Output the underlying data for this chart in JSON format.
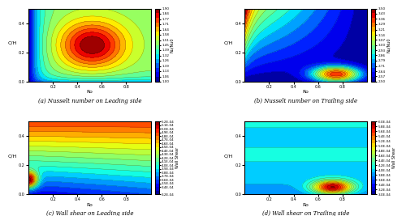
{
  "nu_lead": {
    "title": "(a) Nusselt number on Leading side",
    "xlabel": "Ro",
    "ylabel": "C/H",
    "cbar_label": "Nu/Nu0",
    "vmin": 1.0,
    "vmax": 1.9,
    "levels_n": 16,
    "colormap": "jet",
    "ticks": [
      1.0,
      1.06,
      1.13,
      1.19,
      1.26,
      1.32,
      1.39,
      1.45,
      1.51,
      1.58,
      1.64,
      1.71,
      1.77,
      1.84,
      1.9
    ]
  },
  "nu_trail": {
    "title": "(b) Nusselt number on Trailing side",
    "xlabel": "Ro",
    "ylabel": "C/H",
    "cbar_label": "Nu/Nu0",
    "vmin": 2.5,
    "vmax": 3.5,
    "levels_n": 16,
    "colormap": "jet",
    "ticks": [
      2.5,
      2.57,
      2.64,
      2.71,
      2.79,
      2.86,
      2.93,
      3.0,
      3.07,
      3.14,
      3.21,
      3.29,
      3.36,
      3.43,
      3.5
    ]
  },
  "ws_lead": {
    "title": "(c) Wall shear on Leading side",
    "xlabel": "Ro",
    "ylabel": "C/H",
    "cbar_label": "Wall Shear",
    "vmin": 0.00032,
    "vmax": 0.00052,
    "levels_n": 20,
    "colormap": "jet",
    "ticks_str": [
      "3.2E-04",
      "3.4E-04",
      "3.5E-04",
      "3.6E-04",
      "3.7E-04",
      "3.8E-04",
      "3.9E-04",
      "4.0E-04",
      "4.1E-04",
      "4.2E-04",
      "4.3E-04",
      "4.4E-04",
      "4.5E-04",
      "4.6E-04",
      "4.7E-04",
      "4.8E-04",
      "4.9E-04",
      "5.0E-04",
      "5.1E-04",
      "5.2E-04"
    ],
    "ticks_vals": [
      0.00032,
      0.00034,
      0.00035,
      0.00036,
      0.00037,
      0.00038,
      0.00039,
      0.0004,
      0.00041,
      0.00042,
      0.00043,
      0.00044,
      0.00045,
      0.00046,
      0.00047,
      0.00048,
      0.00049,
      0.0005,
      0.00051,
      0.00052
    ]
  },
  "ws_trail": {
    "title": "(d) Wall shear on Trailing side",
    "xlabel": "Ro",
    "ylabel": "C/H",
    "cbar_label": "Wall Shear",
    "vmin": 0.0003,
    "vmax": 0.0006,
    "levels_n": 20,
    "colormap": "jet",
    "ticks_str": [
      "3.0E-04",
      "3.2E-04",
      "3.4E-04",
      "3.6E-04",
      "3.8E-04",
      "4.0E-04",
      "4.2E-04",
      "4.4E-04",
      "4.6E-04",
      "4.8E-04",
      "5.0E-04",
      "5.2E-04",
      "5.4E-04",
      "5.6E-04",
      "5.8E-04",
      "6.0E-04"
    ],
    "ticks_vals": [
      0.0003,
      0.00032,
      0.00034,
      0.00036,
      0.00038,
      0.0004,
      0.00042,
      0.00044,
      0.00046,
      0.00048,
      0.0005,
      0.00052,
      0.00054,
      0.00056,
      0.00058,
      0.0006
    ]
  }
}
